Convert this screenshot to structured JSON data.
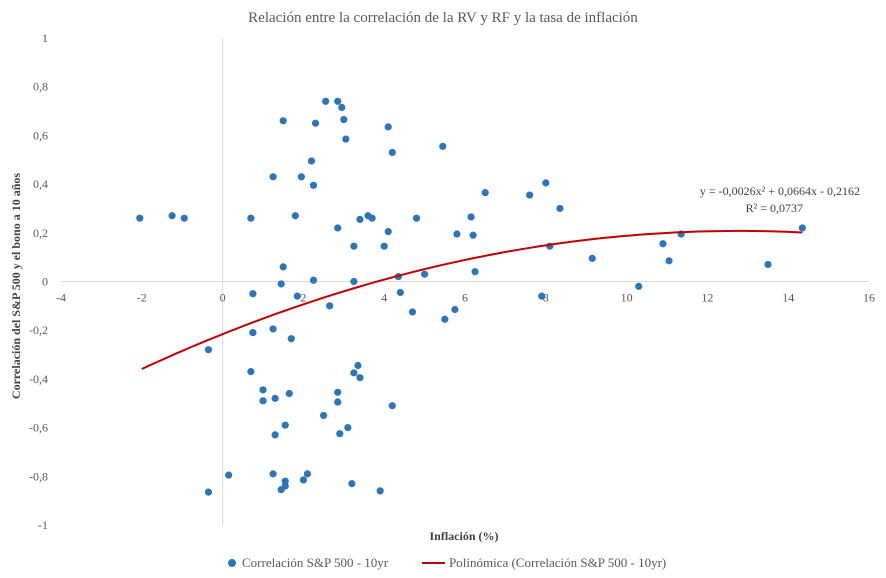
{
  "chart_data": {
    "type": "scatter",
    "title": "Relación entre la correlación de la RV y RF y la tasa de inflación",
    "xlabel": "Inflación (%)",
    "ylabel": "Correlación del S&P 500 y el bono a 10 años",
    "xlim": [
      -4,
      16
    ],
    "ylim": [
      -1,
      1
    ],
    "x_ticks": [
      "-4",
      "-2",
      "0",
      "2",
      "4",
      "6",
      "8",
      "10",
      "12",
      "14",
      "16"
    ],
    "y_ticks": [
      "-1",
      "-0,8",
      "-0,6",
      "-0,4",
      "-0,2",
      "0",
      "0,2",
      "0,4",
      "0,6",
      "0,8",
      "1"
    ],
    "grid": false,
    "legend_position": "bottom",
    "series": [
      {
        "name": "Correlación S&P 500 - 10yr",
        "color": "#2E75B6",
        "points": [
          [
            -2.05,
            0.26
          ],
          [
            -1.25,
            0.27
          ],
          [
            -0.95,
            0.26
          ],
          [
            -0.35,
            -0.28
          ],
          [
            -0.35,
            -0.865
          ],
          [
            0.15,
            -0.795
          ],
          [
            0.7,
            0.26
          ],
          [
            0.7,
            -0.37
          ],
          [
            0.75,
            -0.05
          ],
          [
            0.75,
            -0.21
          ],
          [
            1.0,
            -0.445
          ],
          [
            1.0,
            -0.49
          ],
          [
            1.25,
            0.43
          ],
          [
            1.25,
            -0.195
          ],
          [
            1.25,
            -0.79
          ],
          [
            1.3,
            -0.48
          ],
          [
            1.3,
            -0.63
          ],
          [
            1.45,
            -0.01
          ],
          [
            1.45,
            -0.855
          ],
          [
            1.5,
            0.66
          ],
          [
            1.5,
            0.06
          ],
          [
            1.55,
            -0.59
          ],
          [
            1.55,
            -0.82
          ],
          [
            1.55,
            -0.84
          ],
          [
            1.65,
            -0.46
          ],
          [
            1.7,
            -0.235
          ],
          [
            1.8,
            0.27
          ],
          [
            1.85,
            -0.06
          ],
          [
            1.95,
            0.43
          ],
          [
            2.0,
            -0.815
          ],
          [
            2.1,
            -0.79
          ],
          [
            2.2,
            0.495
          ],
          [
            2.25,
            0.395
          ],
          [
            2.3,
            0.65
          ],
          [
            2.25,
            0.005
          ],
          [
            2.5,
            -0.55
          ],
          [
            2.55,
            0.74
          ],
          [
            2.65,
            -0.1
          ],
          [
            2.85,
            0.74
          ],
          [
            2.85,
            0.22
          ],
          [
            2.85,
            -0.455
          ],
          [
            2.85,
            -0.495
          ],
          [
            2.9,
            -0.625
          ],
          [
            2.95,
            0.715
          ],
          [
            3.0,
            0.665
          ],
          [
            3.05,
            0.585
          ],
          [
            3.1,
            -0.6
          ],
          [
            3.2,
            -0.83
          ],
          [
            3.25,
            0.145
          ],
          [
            3.25,
            0.0
          ],
          [
            3.25,
            -0.375
          ],
          [
            3.35,
            -0.345
          ],
          [
            3.4,
            0.255
          ],
          [
            3.4,
            -0.395
          ],
          [
            3.6,
            0.27
          ],
          [
            3.7,
            0.26
          ],
          [
            3.9,
            -0.86
          ],
          [
            4.0,
            0.145
          ],
          [
            4.1,
            0.205
          ],
          [
            4.1,
            0.635
          ],
          [
            4.2,
            0.53
          ],
          [
            4.2,
            -0.51
          ],
          [
            4.35,
            0.02
          ],
          [
            4.4,
            -0.045
          ],
          [
            4.7,
            -0.125
          ],
          [
            4.8,
            0.26
          ],
          [
            5.0,
            0.03
          ],
          [
            5.45,
            0.555
          ],
          [
            5.5,
            -0.155
          ],
          [
            5.75,
            -0.115
          ],
          [
            5.8,
            0.195
          ],
          [
            6.15,
            0.265
          ],
          [
            6.2,
            0.19
          ],
          [
            6.25,
            0.04
          ],
          [
            6.5,
            0.365
          ],
          [
            7.6,
            0.355
          ],
          [
            7.9,
            -0.06
          ],
          [
            8.0,
            0.405
          ],
          [
            8.1,
            0.145
          ],
          [
            8.35,
            0.3
          ],
          [
            9.15,
            0.095
          ],
          [
            10.3,
            -0.02
          ],
          [
            10.9,
            0.155
          ],
          [
            11.05,
            0.085
          ],
          [
            11.35,
            0.195
          ],
          [
            13.5,
            0.07
          ],
          [
            14.35,
            0.22
          ]
        ]
      }
    ],
    "trendline": {
      "name": "Polinómica (Correlación S&P 500 - 10yr)",
      "color": "#C00000",
      "type": "polynomial",
      "a": -0.0026,
      "b": 0.0664,
      "c": -0.2162,
      "x_range": [
        -2,
        14.35
      ],
      "equation": "y = -0,0026x² + 0,0664x - 0,2162",
      "r2": "R² = 0,0737"
    }
  }
}
